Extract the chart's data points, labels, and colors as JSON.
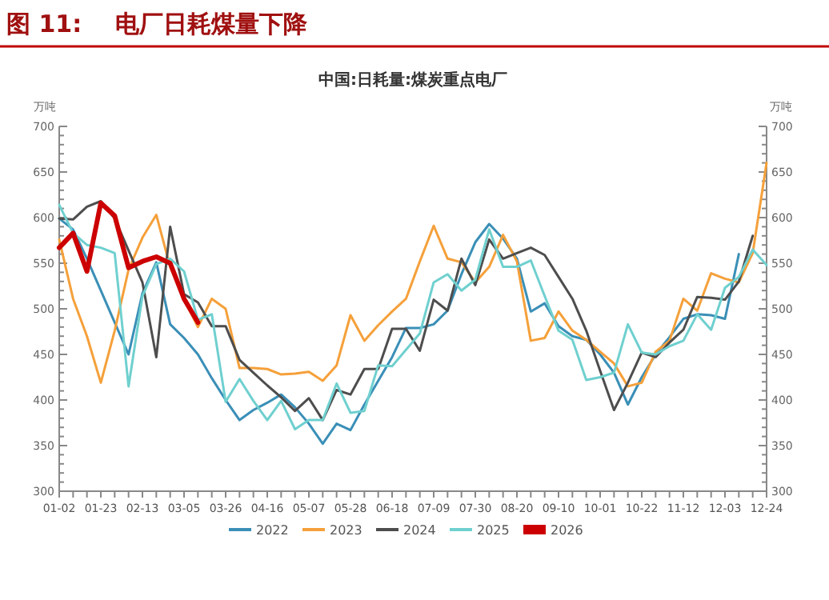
{
  "chart_data": {
    "type": "line",
    "title": "图 11:    电厂日耗煤量下降",
    "subtitle": "中国:日耗量:煤炭重点电厂",
    "ylabel": "万吨",
    "y2label": "万吨",
    "categories": [
      "01-02",
      null,
      null,
      "01-23",
      null,
      null,
      "02-13",
      null,
      null,
      "03-05",
      null,
      null,
      "03-26",
      null,
      null,
      "04-16",
      null,
      null,
      "05-07",
      null,
      null,
      "05-28",
      null,
      null,
      "06-18",
      null,
      null,
      "07-09",
      null,
      null,
      "07-30",
      null,
      null,
      "08-20",
      null,
      null,
      "09-10",
      null,
      null,
      "10-01",
      null,
      null,
      "10-22",
      null,
      null,
      "11-12",
      null,
      null,
      "12-03",
      null,
      null,
      "12-24"
    ],
    "series": [
      {
        "name": "2022",
        "color": "#3a8fb7",
        "values": [
          599,
          587,
          555,
          520,
          485,
          450,
          517,
          551,
          483,
          468,
          450,
          424,
          400,
          378,
          389,
          397,
          406,
          392,
          374,
          352,
          374,
          367,
          395,
          421,
          447,
          479,
          479,
          483,
          498,
          538,
          573,
          593,
          577,
          555,
          497,
          506,
          481,
          470,
          466,
          450,
          430,
          395,
          425,
          450,
          469,
          489,
          494,
          493,
          489,
          560,
          null,
          null
        ]
      },
      {
        "name": "2023",
        "color": "#f5a03a",
        "values": [
          576,
          511,
          470,
          419,
          476,
          543,
          578,
          603,
          546,
          511,
          480,
          511,
          500,
          435,
          435,
          434,
          428,
          429,
          431,
          421,
          438,
          493,
          465,
          482,
          497,
          511,
          552,
          591,
          555,
          551,
          529,
          546,
          581,
          552,
          465,
          468,
          497,
          476,
          466,
          453,
          440,
          415,
          419,
          453,
          465,
          511,
          498,
          539,
          533,
          529,
          561,
          660
        ]
      },
      {
        "name": "2024",
        "color": "#4d4d4d",
        "values": [
          599,
          598,
          612,
          618,
          599,
          564,
          529,
          447,
          590,
          516,
          507,
          481,
          481,
          444,
          430,
          416,
          403,
          388,
          402,
          378,
          411,
          406,
          434,
          434,
          478,
          478,
          454,
          510,
          498,
          555,
          526,
          576,
          555,
          561,
          567,
          559,
          535,
          511,
          476,
          432,
          389,
          419,
          452,
          447,
          463,
          477,
          513,
          512,
          510,
          530,
          580,
          null
        ]
      },
      {
        "name": "2025",
        "color": "#6fd0cf",
        "values": [
          614,
          583,
          570,
          567,
          561,
          415,
          514,
          549,
          555,
          541,
          488,
          494,
          398,
          423,
          399,
          378,
          399,
          368,
          378,
          378,
          418,
          386,
          388,
          438,
          437,
          455,
          473,
          529,
          538,
          520,
          532,
          587,
          546,
          546,
          553,
          514,
          476,
          466,
          422,
          425,
          430,
          483,
          452,
          450,
          459,
          465,
          494,
          477,
          523,
          535,
          565,
          548
        ]
      },
      {
        "name": "2026",
        "color": "#cc0000",
        "values": [
          567,
          583,
          541,
          616,
          602,
          545,
          552,
          557,
          550,
          511,
          485,
          null,
          null,
          null,
          null,
          null,
          null,
          null,
          null,
          null,
          null,
          null,
          null,
          null,
          null,
          null,
          null,
          null,
          null,
          null,
          null,
          null,
          null,
          null,
          null,
          null,
          null,
          null,
          null,
          null,
          null,
          null,
          null,
          null,
          null,
          null,
          null,
          null,
          null,
          null,
          null,
          null
        ]
      }
    ],
    "ylim": [
      300,
      700
    ],
    "yticks": [
      300,
      350,
      400,
      450,
      500,
      550,
      600,
      650,
      700
    ],
    "y2lim": [
      300,
      700
    ],
    "y2ticks": [
      300,
      350,
      400,
      450,
      500,
      550,
      600,
      650,
      700
    ],
    "grid": false,
    "legend": "bottom",
    "marker": "none",
    "line_style": "solid"
  }
}
